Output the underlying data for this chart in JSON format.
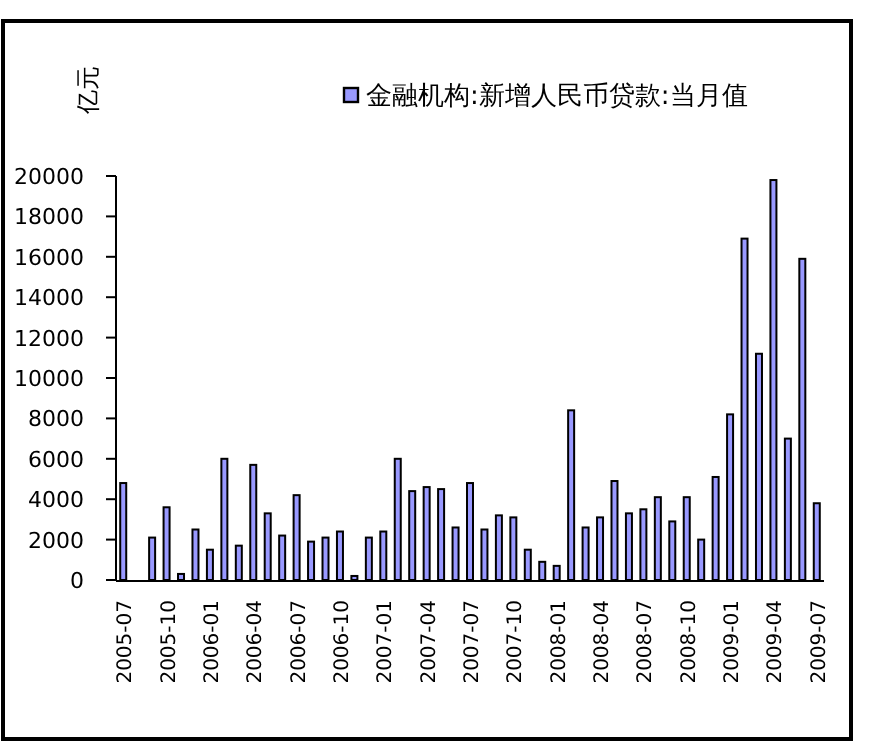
{
  "chart_data": {
    "type": "bar",
    "ylabel": "亿元",
    "categories": [
      "2005-07",
      null,
      null,
      "2005-10",
      null,
      null,
      "2006-01",
      null,
      null,
      "2006-04",
      null,
      null,
      "2006-07",
      null,
      null,
      "2006-10",
      null,
      null,
      "2007-01",
      null,
      null,
      "2007-04",
      null,
      null,
      "2007-07",
      null,
      null,
      "2007-10",
      null,
      null,
      "2008-01",
      null,
      null,
      "2008-04",
      null,
      null,
      "2008-07",
      null,
      null,
      "2008-10",
      null,
      null,
      "2009-01",
      null,
      null,
      "2009-04",
      null,
      null,
      "2009-07"
    ],
    "series": [
      {
        "name": "金融机构:新增人民币贷款:当月值",
        "color": "#9999ff",
        "values": [
          4800,
          null,
          2100,
          3600,
          300,
          2500,
          1500,
          6000,
          1700,
          5700,
          3300,
          2200,
          4200,
          1900,
          2100,
          2400,
          200,
          2100,
          2400,
          6000,
          4400,
          4600,
          4500,
          2600,
          4800,
          2500,
          3200,
          3100,
          1500,
          900,
          700,
          8400,
          2600,
          3100,
          4900,
          3300,
          3500,
          4100,
          2900,
          4100,
          2000,
          5100,
          8200,
          16900,
          11200,
          19800,
          7000,
          15900,
          3800
        ]
      }
    ],
    "ylim": [
      0,
      20000
    ],
    "yticks": [
      0,
      2000,
      4000,
      6000,
      8000,
      10000,
      12000,
      14000,
      16000,
      18000,
      20000
    ],
    "legend": "top",
    "grid": false
  }
}
